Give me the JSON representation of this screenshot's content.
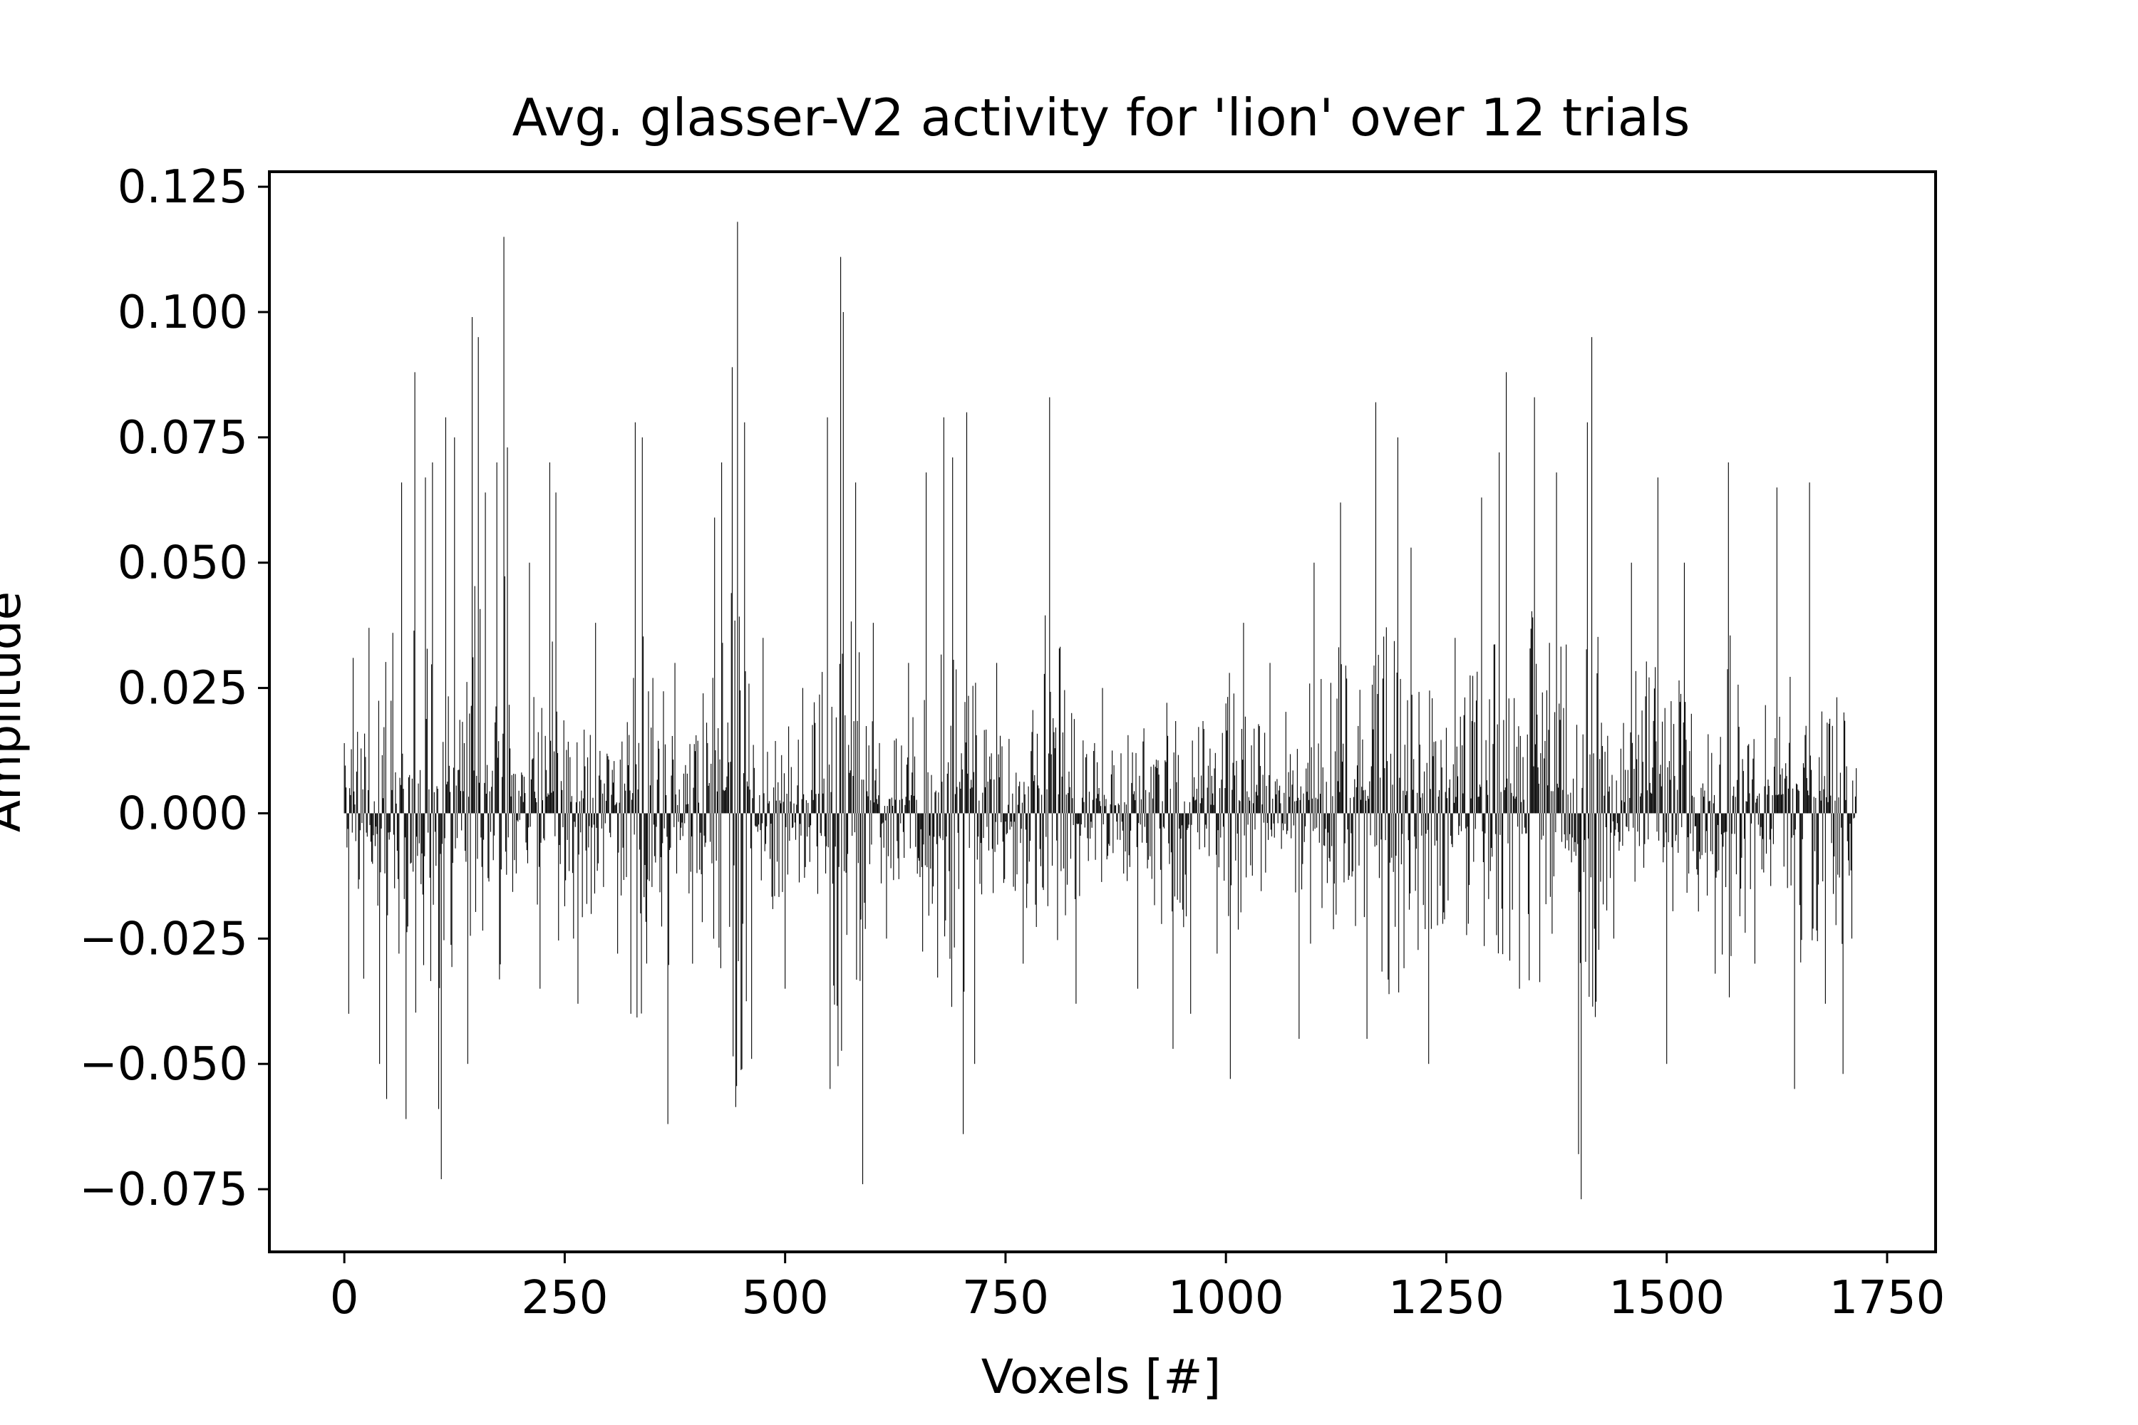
{
  "chart_data": {
    "type": "bar",
    "title": "Avg. glasser-V2 activity for 'lion' over 12 trials",
    "xlabel": "Voxels [#]",
    "ylabel": "Amplitude",
    "xlim": [
      -85,
      1805
    ],
    "ylim": [
      -0.0875,
      0.128
    ],
    "xticks": [
      0,
      250,
      500,
      750,
      1000,
      1250,
      1500,
      1750
    ],
    "xtick_labels": [
      "0",
      "250",
      "500",
      "750",
      "1000",
      "1250",
      "1500",
      "1750"
    ],
    "yticks": [
      -0.075,
      -0.05,
      -0.025,
      0.0,
      0.025,
      0.05,
      0.075,
      0.1,
      0.125
    ],
    "ytick_labels": [
      "−0.075",
      "−0.050",
      "−0.025",
      "0.000",
      "0.025",
      "0.050",
      "0.075",
      "0.100",
      "0.125"
    ],
    "grid": false,
    "bar_color": "#000000",
    "voxel_count": 1716,
    "sampled_peaks": [
      {
        "x": 0,
        "y": 0.014
      },
      {
        "x": 5,
        "y": -0.04
      },
      {
        "x": 10,
        "y": 0.031
      },
      {
        "x": 22,
        "y": -0.033
      },
      {
        "x": 28,
        "y": 0.037
      },
      {
        "x": 40,
        "y": -0.05
      },
      {
        "x": 48,
        "y": -0.057
      },
      {
        "x": 55,
        "y": 0.036
      },
      {
        "x": 62,
        "y": -0.028
      },
      {
        "x": 65,
        "y": 0.066
      },
      {
        "x": 70,
        "y": -0.061
      },
      {
        "x": 80,
        "y": 0.088
      },
      {
        "x": 92,
        "y": 0.067
      },
      {
        "x": 100,
        "y": 0.07
      },
      {
        "x": 107,
        "y": -0.059
      },
      {
        "x": 110,
        "y": -0.073
      },
      {
        "x": 115,
        "y": 0.079
      },
      {
        "x": 125,
        "y": 0.075
      },
      {
        "x": 140,
        "y": -0.05
      },
      {
        "x": 145,
        "y": 0.099
      },
      {
        "x": 152,
        "y": 0.095
      },
      {
        "x": 160,
        "y": 0.064
      },
      {
        "x": 173,
        "y": 0.07
      },
      {
        "x": 181,
        "y": 0.115
      },
      {
        "x": 185,
        "y": 0.073
      },
      {
        "x": 195,
        "y": -0.012
      },
      {
        "x": 210,
        "y": 0.05
      },
      {
        "x": 222,
        "y": -0.035
      },
      {
        "x": 233,
        "y": 0.07
      },
      {
        "x": 240,
        "y": 0.064
      },
      {
        "x": 260,
        "y": -0.025
      },
      {
        "x": 265,
        "y": -0.038
      },
      {
        "x": 285,
        "y": 0.038
      },
      {
        "x": 310,
        "y": -0.028
      },
      {
        "x": 325,
        "y": -0.04
      },
      {
        "x": 330,
        "y": 0.078
      },
      {
        "x": 338,
        "y": 0.075
      },
      {
        "x": 350,
        "y": 0.027
      },
      {
        "x": 367,
        "y": -0.062
      },
      {
        "x": 375,
        "y": 0.03
      },
      {
        "x": 395,
        "y": -0.03
      },
      {
        "x": 420,
        "y": 0.059
      },
      {
        "x": 428,
        "y": 0.07
      },
      {
        "x": 440,
        "y": 0.089
      },
      {
        "x": 446,
        "y": 0.118
      },
      {
        "x": 454,
        "y": 0.078
      },
      {
        "x": 462,
        "y": -0.049
      },
      {
        "x": 475,
        "y": 0.035
      },
      {
        "x": 500,
        "y": -0.035
      },
      {
        "x": 520,
        "y": 0.025
      },
      {
        "x": 548,
        "y": 0.079
      },
      {
        "x": 551,
        "y": -0.055
      },
      {
        "x": 563,
        "y": 0.111
      },
      {
        "x": 566,
        "y": 0.1
      },
      {
        "x": 580,
        "y": 0.066
      },
      {
        "x": 588,
        "y": -0.074
      },
      {
        "x": 600,
        "y": 0.038
      },
      {
        "x": 615,
        "y": -0.025
      },
      {
        "x": 640,
        "y": 0.03
      },
      {
        "x": 660,
        "y": 0.068
      },
      {
        "x": 680,
        "y": 0.079
      },
      {
        "x": 690,
        "y": 0.071
      },
      {
        "x": 702,
        "y": -0.064
      },
      {
        "x": 706,
        "y": 0.08
      },
      {
        "x": 715,
        "y": -0.05
      },
      {
        "x": 740,
        "y": 0.03
      },
      {
        "x": 770,
        "y": -0.03
      },
      {
        "x": 800,
        "y": 0.083
      },
      {
        "x": 830,
        "y": -0.038
      },
      {
        "x": 860,
        "y": 0.025
      },
      {
        "x": 900,
        "y": -0.035
      },
      {
        "x": 940,
        "y": -0.047
      },
      {
        "x": 960,
        "y": -0.04
      },
      {
        "x": 990,
        "y": -0.028
      },
      {
        "x": 1005,
        "y": -0.053
      },
      {
        "x": 1020,
        "y": 0.038
      },
      {
        "x": 1050,
        "y": 0.03
      },
      {
        "x": 1083,
        "y": -0.045
      },
      {
        "x": 1100,
        "y": 0.05
      },
      {
        "x": 1130,
        "y": 0.062
      },
      {
        "x": 1160,
        "y": -0.045
      },
      {
        "x": 1170,
        "y": 0.082
      },
      {
        "x": 1195,
        "y": 0.075
      },
      {
        "x": 1210,
        "y": 0.053
      },
      {
        "x": 1230,
        "y": -0.05
      },
      {
        "x": 1260,
        "y": 0.035
      },
      {
        "x": 1290,
        "y": 0.063
      },
      {
        "x": 1310,
        "y": 0.072
      },
      {
        "x": 1318,
        "y": 0.088
      },
      {
        "x": 1333,
        "y": -0.035
      },
      {
        "x": 1350,
        "y": 0.083
      },
      {
        "x": 1375,
        "y": 0.068
      },
      {
        "x": 1400,
        "y": -0.068
      },
      {
        "x": 1403,
        "y": -0.077
      },
      {
        "x": 1410,
        "y": 0.078
      },
      {
        "x": 1415,
        "y": 0.095
      },
      {
        "x": 1440,
        "y": -0.025
      },
      {
        "x": 1460,
        "y": 0.05
      },
      {
        "x": 1490,
        "y": 0.067
      },
      {
        "x": 1500,
        "y": -0.05
      },
      {
        "x": 1520,
        "y": 0.05
      },
      {
        "x": 1555,
        "y": -0.032
      },
      {
        "x": 1570,
        "y": 0.07
      },
      {
        "x": 1600,
        "y": -0.03
      },
      {
        "x": 1625,
        "y": 0.065
      },
      {
        "x": 1645,
        "y": -0.055
      },
      {
        "x": 1662,
        "y": 0.066
      },
      {
        "x": 1680,
        "y": -0.038
      },
      {
        "x": 1700,
        "y": -0.052
      },
      {
        "x": 1710,
        "y": -0.025
      },
      {
        "x": 1715,
        "y": 0.009
      }
    ]
  }
}
